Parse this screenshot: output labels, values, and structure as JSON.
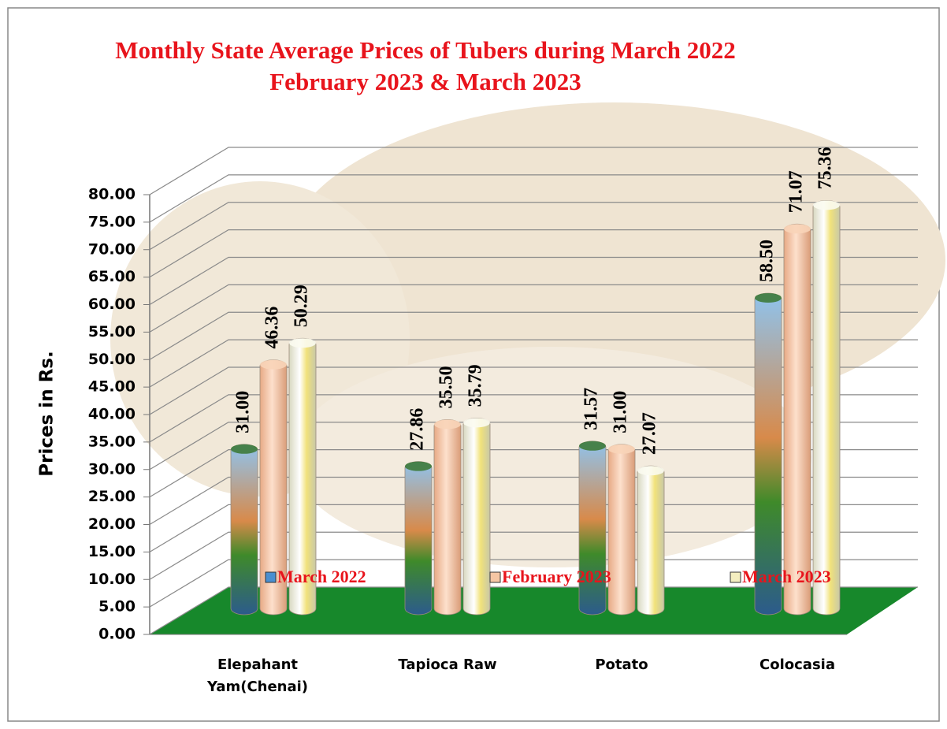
{
  "chart_data": {
    "type": "bar",
    "title": "Monthly State Average Prices of Tubers during March 2022 February 2023 & March 2023",
    "y_label": "Prices in Rs.",
    "categories": [
      "Elepahant Yam(Chenai)",
      "Tapioca Raw",
      "Potato",
      "Colocasia"
    ],
    "series": [
      {
        "name": "March 2022",
        "color": "#4a8fd0",
        "values": [
          31.0,
          27.86,
          31.57,
          58.5
        ],
        "value_labels": [
          "31.00",
          "27.86",
          "31.57",
          "58.50"
        ]
      },
      {
        "name": "February 2023",
        "color": "#f6c6a4",
        "values": [
          46.36,
          35.5,
          31.0,
          71.07
        ],
        "value_labels": [
          "46.36",
          "35.50",
          "31.00",
          "71.07"
        ]
      },
      {
        "name": "March 2023",
        "color": "#f4eec0",
        "values": [
          50.29,
          35.79,
          27.07,
          75.36
        ],
        "value_labels": [
          "50.29",
          "35.79",
          "27.07",
          "75.36"
        ]
      }
    ],
    "ylim": [
      0,
      80
    ],
    "yticks": [
      {
        "value": 0,
        "label": "0.00"
      },
      {
        "value": 5,
        "label": "5.00"
      },
      {
        "value": 10,
        "label": "10.00"
      },
      {
        "value": 15,
        "label": "15.00"
      },
      {
        "value": 20,
        "label": "20.00"
      },
      {
        "value": 25,
        "label": "25.00"
      },
      {
        "value": 30,
        "label": "30.00"
      },
      {
        "value": 35,
        "label": "35.00"
      },
      {
        "value": 40,
        "label": "40.00"
      },
      {
        "value": 45,
        "label": "45.00"
      },
      {
        "value": 50,
        "label": "50.00"
      },
      {
        "value": 55,
        "label": "55.00"
      },
      {
        "value": 60,
        "label": "60.00"
      },
      {
        "value": 65,
        "label": "65.00"
      },
      {
        "value": 70,
        "label": "70.00"
      },
      {
        "value": 75,
        "label": "75.00"
      },
      {
        "value": 80,
        "label": "80.00"
      }
    ],
    "grid": true
  }
}
